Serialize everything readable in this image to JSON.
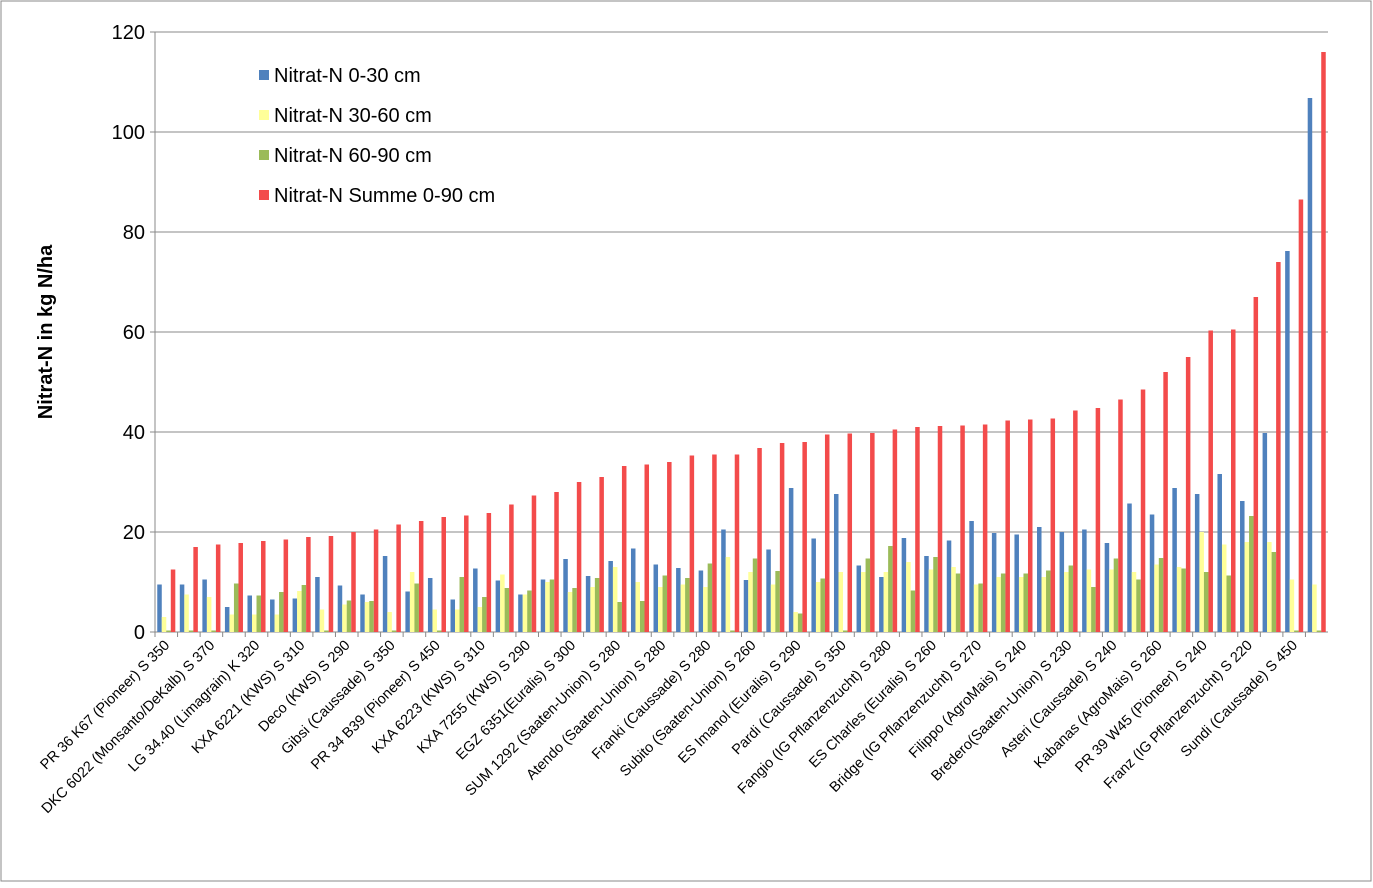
{
  "chart_data": {
    "type": "bar",
    "y_label": "Nitrat-N in kg N/ha",
    "categories": [
      "PR 36 K67 (Pioneer) S 350",
      null,
      "DKC 6022 (Monsanto/DeKalb) S 370",
      null,
      "LG 34.40 (Limagrain) K 320",
      null,
      "KXA 6221 (KWS) S 310",
      null,
      "Deco (KWS) S 290",
      null,
      "Gibsi (Caussade) S 350",
      null,
      "PR 34 B39 (Pioneer) S 450",
      null,
      "KXA 6223 (KWS) S 310",
      null,
      "KXA 7255 (KWS) S 290",
      null,
      "EGZ 6351(Euralis) S 300",
      null,
      "SUM 1292 (Saaten-Union)  S 280",
      null,
      "Atendo (Saaten-Union) S 280",
      null,
      "Franki (Caussade) S 280",
      null,
      "Subito (Saaten-Union) S 260",
      null,
      "ES Imanol (Euralis) S 290",
      null,
      "Pardi (Caussade) S 350",
      null,
      "Fangio (IG Pflanzenzucht) S 280",
      null,
      "ES Charles (Euralis) S 260",
      null,
      "Bridge (IG Pflanzenzucht) S 270",
      null,
      "Filippo (AgroMais) S 240",
      null,
      "Bredero(Saaten-Union)  S 230",
      null,
      "Asteri (Caussade) S 240",
      null,
      "Kabanas (AgroMais) S 260",
      null,
      "PR 39 W45 (Pioneer) S 240",
      null,
      "Franz (IG Pflanzenzucht) S 220",
      null,
      "Sundi (Caussade) S 450",
      null
    ],
    "series": [
      {
        "name": "Nitrat-N 0-30 cm",
        "color": "#4f81bd",
        "values": [
          9.5,
          9.5,
          10.5,
          5,
          7.3,
          6.5,
          6.7,
          11,
          9.3,
          7.5,
          15.2,
          8.1,
          10.8,
          6.5,
          12.7,
          10.3,
          7.5,
          10.5,
          14.6,
          11.2,
          14.2,
          16.7,
          13.5,
          12.8,
          12.3,
          20.5,
          10.4,
          16.5,
          28.8,
          18.7,
          27.6,
          13.3,
          11,
          18.8,
          15.2,
          18.3,
          22.2,
          19.8,
          19.5,
          21,
          20,
          20.5,
          17.8,
          25.7,
          23.5,
          28.8,
          27.6,
          31.6,
          26.2,
          39.8,
          76.2,
          106.8
        ]
      },
      {
        "name": "Nitrat-N 30-60 cm",
        "color": "#ffff99",
        "values": [
          3,
          7.5,
          7,
          3.5,
          3.5,
          3.5,
          8.2,
          4.5,
          5.5,
          6,
          4,
          12,
          4.5,
          4.5,
          5,
          11.5,
          7.5,
          10,
          8,
          9,
          13,
          10,
          9,
          9.5,
          9,
          15,
          12,
          9.5,
          4,
          10,
          12,
          12,
          12,
          14,
          12.5,
          13,
          9.5,
          11,
          11,
          11,
          12,
          12.5,
          12.5,
          12,
          13.5,
          13,
          20,
          17.5,
          18,
          18,
          10.5,
          9.5
        ]
      },
      {
        "name": "Nitrat-N 60-90 cm",
        "color": "#9bbb59",
        "values": [
          0.3,
          0.3,
          0.3,
          9.7,
          7.3,
          8,
          9.4,
          0.3,
          6.3,
          6.2,
          0.3,
          9.7,
          0.3,
          11,
          7,
          8.8,
          8.3,
          10.5,
          8.8,
          10.8,
          6,
          6.2,
          11.3,
          10.8,
          13.7,
          0.3,
          14.7,
          12.2,
          3.7,
          10.7,
          0.3,
          14.7,
          17.2,
          8.3,
          15,
          11.7,
          9.7,
          11.7,
          11.7,
          12.3,
          13.3,
          9,
          14.7,
          10.5,
          14.8,
          12.7,
          12,
          11.3,
          23.2,
          16,
          0.3,
          0.3
        ]
      },
      {
        "name": "Nitrat-N Summe 0-90 cm",
        "color": "#f34b4b",
        "values": [
          12.5,
          17,
          17.5,
          17.8,
          18.2,
          18.5,
          19,
          19.2,
          20,
          20.5,
          21.5,
          22.2,
          23,
          23.3,
          23.8,
          25.5,
          27.3,
          28,
          30,
          31,
          33.2,
          33.5,
          34,
          35.3,
          35.5,
          35.5,
          36.8,
          37.8,
          38,
          39.5,
          39.7,
          39.8,
          40.5,
          41,
          41.2,
          41.3,
          41.5,
          42.3,
          42.5,
          42.7,
          44.3,
          44.8,
          46.5,
          48.5,
          52,
          55,
          60.3,
          60.5,
          67,
          74,
          86.5,
          116
        ]
      }
    ],
    "ylim": [
      0,
      120
    ],
    "yticks": [
      0,
      20,
      40,
      60,
      80,
      100,
      120
    ],
    "grid": true,
    "legend": "upper left"
  }
}
